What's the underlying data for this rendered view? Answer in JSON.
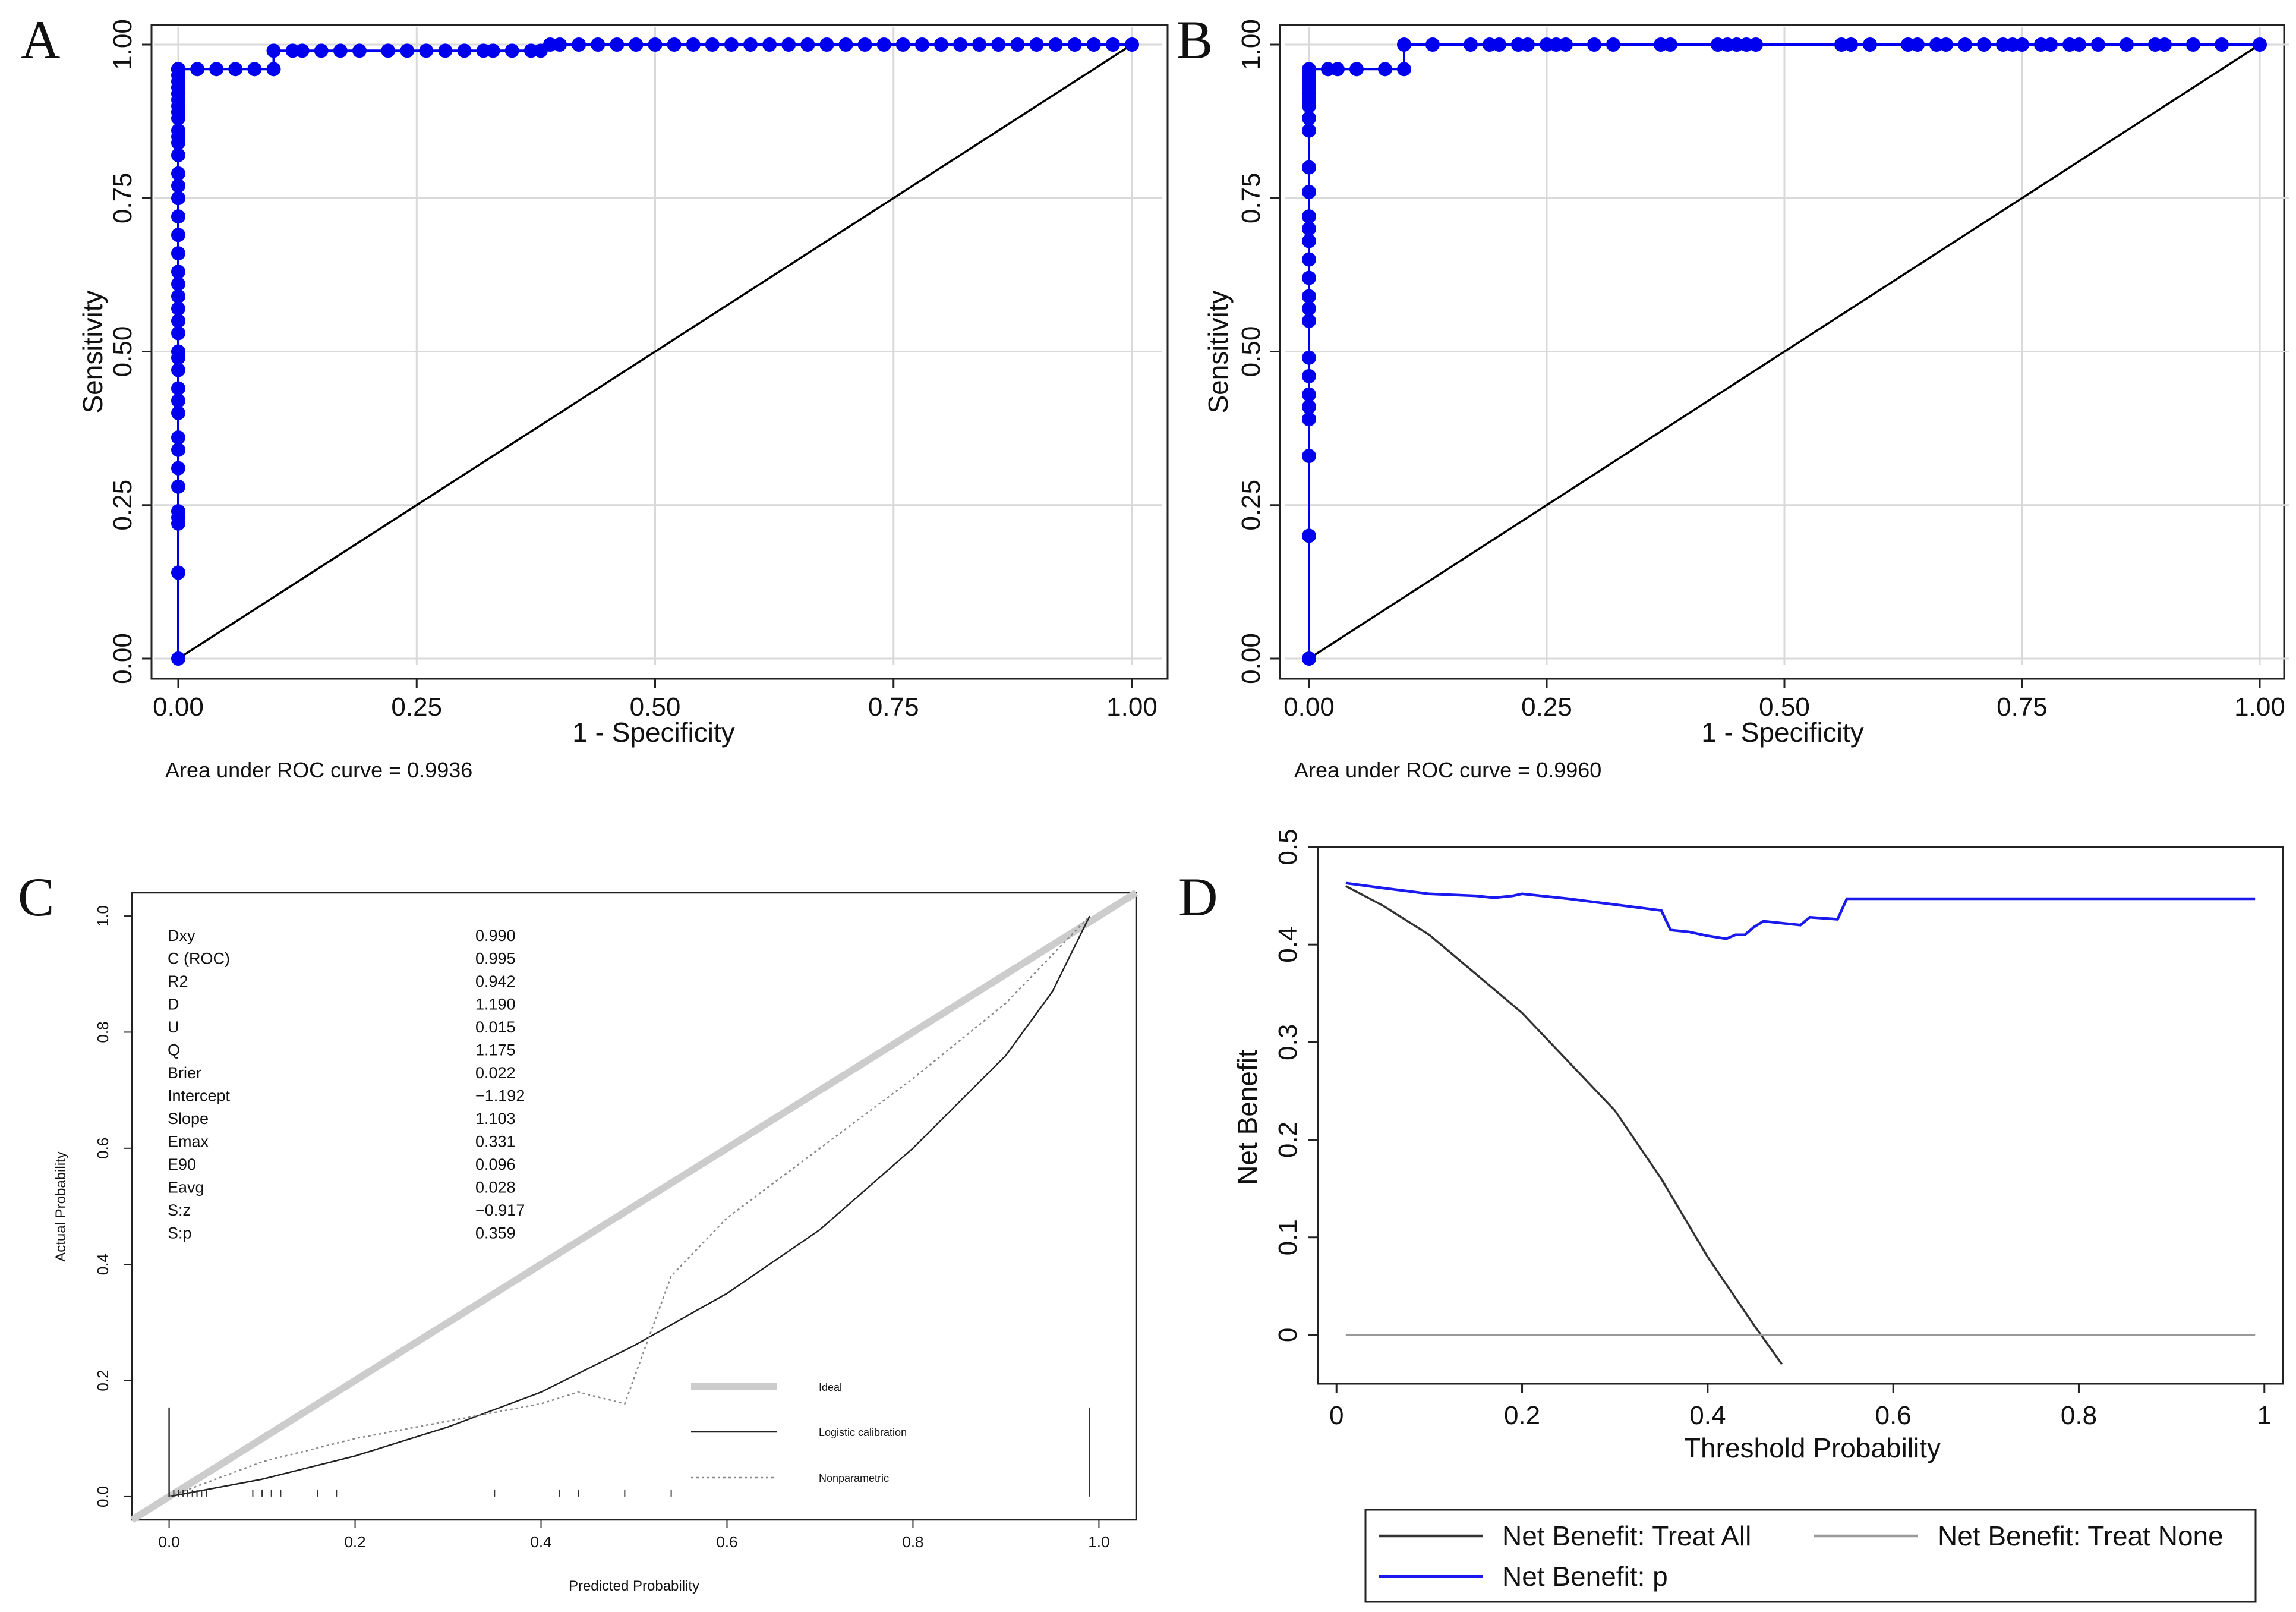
{
  "panels": [
    {
      "id": "A",
      "letter": "A",
      "chart_data": {
        "type": "line",
        "subtype": "roc",
        "xlabel": "1 - Specificity",
        "ylabel": "Sensitivity",
        "xlim": [
          0,
          1
        ],
        "ylim": [
          0,
          1
        ],
        "xticks": [
          "0.00",
          "0.25",
          "0.50",
          "0.75",
          "1.00"
        ],
        "yticks": [
          "0.00",
          "0.25",
          "0.50",
          "0.75",
          "1.00"
        ],
        "grid": true,
        "footnote": "Area under ROC curve = 0.9936",
        "reference_line": {
          "x": [
            0,
            1
          ],
          "y": [
            0,
            1
          ],
          "color": "#000000"
        },
        "series": [
          {
            "color": "#0000ee",
            "x": [
              0,
              0,
              0,
              0,
              0,
              0,
              0,
              0,
              0,
              0,
              0,
              0,
              0,
              0,
              0,
              0,
              0,
              0,
              0,
              0,
              0,
              0,
              0,
              0,
              0,
              0,
              0,
              0,
              0,
              0,
              0,
              0,
              0,
              0,
              0,
              0,
              0,
              0,
              0,
              0,
              0,
              0,
              0,
              0.02,
              0.04,
              0.06,
              0.08,
              0.1,
              0.1,
              0.12,
              0.13,
              0.15,
              0.17,
              0.19,
              0.22,
              0.24,
              0.26,
              0.28,
              0.3,
              0.32,
              0.33,
              0.35,
              0.37,
              0.38,
              0.39,
              0.4,
              0.42,
              0.44,
              0.46,
              0.48,
              0.5,
              0.52,
              0.54,
              0.56,
              0.58,
              0.6,
              0.62,
              0.64,
              0.66,
              0.68,
              0.7,
              0.72,
              0.74,
              0.76,
              0.78,
              0.8,
              0.82,
              0.84,
              0.86,
              0.88,
              0.9,
              0.92,
              0.94,
              0.96,
              0.98,
              1.0
            ],
            "y": [
              0,
              0.14,
              0.22,
              0.23,
              0.24,
              0.28,
              0.31,
              0.34,
              0.36,
              0.4,
              0.42,
              0.44,
              0.47,
              0.49,
              0.5,
              0.53,
              0.55,
              0.57,
              0.59,
              0.61,
              0.63,
              0.66,
              0.69,
              0.72,
              0.75,
              0.77,
              0.79,
              0.82,
              0.84,
              0.85,
              0.86,
              0.88,
              0.89,
              0.9,
              0.91,
              0.92,
              0.93,
              0.94,
              0.95,
              0.96,
              0.96,
              0.96,
              0.96,
              0.96,
              0.96,
              0.96,
              0.96,
              0.96,
              0.99,
              0.99,
              0.99,
              0.99,
              0.99,
              0.99,
              0.99,
              0.99,
              0.99,
              0.99,
              0.99,
              0.99,
              0.99,
              0.99,
              0.99,
              0.99,
              1.0,
              1.0,
              1.0,
              1.0,
              1.0,
              1.0,
              1.0,
              1.0,
              1.0,
              1.0,
              1.0,
              1.0,
              1.0,
              1.0,
              1.0,
              1.0,
              1.0,
              1.0,
              1.0,
              1.0,
              1.0,
              1.0,
              1.0,
              1.0,
              1.0,
              1.0,
              1.0,
              1.0,
              1.0,
              1.0,
              1.0,
              1.0
            ]
          }
        ]
      }
    },
    {
      "id": "B",
      "letter": "B",
      "chart_data": {
        "type": "line",
        "subtype": "roc",
        "xlabel": "1 - Specificity",
        "ylabel": "Sensitivity",
        "xlim": [
          0,
          1
        ],
        "ylim": [
          0,
          1
        ],
        "xticks": [
          "0.00",
          "0.25",
          "0.50",
          "0.75",
          "1.00"
        ],
        "yticks": [
          "0.00",
          "0.25",
          "0.50",
          "0.75",
          "1.00"
        ],
        "grid": true,
        "footnote": "Area under ROC curve = 0.9960",
        "reference_line": {
          "x": [
            0,
            1
          ],
          "y": [
            0,
            1
          ],
          "color": "#000000"
        },
        "series": [
          {
            "color": "#0000ee",
            "x": [
              0,
              0,
              0,
              0,
              0,
              0,
              0,
              0,
              0,
              0,
              0,
              0,
              0,
              0,
              0,
              0,
              0,
              0,
              0,
              0,
              0,
              0,
              0,
              0,
              0,
              0,
              0,
              0.02,
              0.03,
              0.05,
              0.08,
              0.1,
              0.1,
              0.13,
              0.17,
              0.19,
              0.2,
              0.22,
              0.23,
              0.25,
              0.26,
              0.27,
              0.3,
              0.32,
              0.37,
              0.38,
              0.43,
              0.44,
              0.45,
              0.46,
              0.47,
              0.56,
              0.57,
              0.59,
              0.63,
              0.64,
              0.66,
              0.67,
              0.69,
              0.71,
              0.73,
              0.74,
              0.75,
              0.77,
              0.78,
              0.8,
              0.81,
              0.83,
              0.86,
              0.89,
              0.9,
              0.93,
              0.96,
              1.0
            ],
            "y": [
              0,
              0.2,
              0.33,
              0.39,
              0.41,
              0.43,
              0.46,
              0.49,
              0.55,
              0.57,
              0.59,
              0.62,
              0.65,
              0.68,
              0.7,
              0.72,
              0.76,
              0.8,
              0.86,
              0.88,
              0.9,
              0.91,
              0.92,
              0.93,
              0.94,
              0.95,
              0.96,
              0.96,
              0.96,
              0.96,
              0.96,
              0.96,
              1.0,
              1.0,
              1.0,
              1.0,
              1.0,
              1.0,
              1.0,
              1.0,
              1.0,
              1.0,
              1.0,
              1.0,
              1.0,
              1.0,
              1.0,
              1.0,
              1.0,
              1.0,
              1.0,
              1.0,
              1.0,
              1.0,
              1.0,
              1.0,
              1.0,
              1.0,
              1.0,
              1.0,
              1.0,
              1.0,
              1.0,
              1.0,
              1.0,
              1.0,
              1.0,
              1.0,
              1.0,
              1.0,
              1.0,
              1.0,
              1.0,
              1.0
            ]
          }
        ]
      }
    },
    {
      "id": "C",
      "letter": "C",
      "chart_data": {
        "type": "line",
        "subtype": "calibration",
        "xlabel": "Predicted Probability",
        "ylabel": "Actual Probability",
        "xlim": [
          -0.04,
          1.04
        ],
        "ylim": [
          -0.04,
          1.04
        ],
        "xticks": [
          "0.0",
          "0.2",
          "0.4",
          "0.6",
          "0.8",
          "1.0"
        ],
        "yticks": [
          "0.0",
          "0.2",
          "0.4",
          "0.6",
          "0.8",
          "1.0"
        ],
        "grid": false,
        "stats": [
          {
            "label": "Dxy",
            "value": "0.990"
          },
          {
            "label": "C (ROC)",
            "value": "0.995"
          },
          {
            "label": "R2",
            "value": "0.942"
          },
          {
            "label": "D",
            "value": "1.190"
          },
          {
            "label": "U",
            "value": "0.015"
          },
          {
            "label": "Q",
            "value": "1.175"
          },
          {
            "label": "Brier",
            "value": "0.022"
          },
          {
            "label": "Intercept",
            "value": "−1.192"
          },
          {
            "label": "Slope",
            "value": "1.103"
          },
          {
            "label": "Emax",
            "value": "0.331"
          },
          {
            "label": "E90",
            "value": "0.096"
          },
          {
            "label": "Eavg",
            "value": "0.028"
          },
          {
            "label": "S:z",
            "value": "−0.917"
          },
          {
            "label": "S:p",
            "value": "0.359"
          }
        ],
        "legend": {
          "placement": "bottom-right",
          "entries": [
            {
              "name": "Ideal",
              "style": "thick-gray"
            },
            {
              "name": "Logistic calibration",
              "style": "solid-black"
            },
            {
              "name": "Nonparametric",
              "style": "dotted-gray"
            }
          ]
        },
        "series": [
          {
            "name": "Ideal",
            "color": "#cccccc",
            "x": [
              -0.04,
              1.04
            ],
            "y": [
              -0.04,
              1.04
            ]
          },
          {
            "name": "Logistic calibration",
            "color": "#222222",
            "x": [
              0,
              0.1,
              0.2,
              0.3,
              0.4,
              0.5,
              0.6,
              0.7,
              0.8,
              0.9,
              0.95,
              0.99
            ],
            "y": [
              0,
              0.03,
              0.07,
              0.12,
              0.18,
              0.26,
              0.35,
              0.46,
              0.6,
              0.76,
              0.87,
              1.0
            ]
          },
          {
            "name": "Nonparametric",
            "color": "#888888",
            "x": [
              0,
              0.1,
              0.2,
              0.3,
              0.4,
              0.44,
              0.49,
              0.54,
              0.6,
              0.7,
              0.8,
              0.9,
              0.99
            ],
            "y": [
              0,
              0.06,
              0.1,
              0.13,
              0.16,
              0.18,
              0.16,
              0.38,
              0.48,
              0.6,
              0.72,
              0.85,
              1.0
            ]
          }
        ],
        "rug_x": [
          0,
          0.005,
          0.01,
          0.015,
          0.02,
          0.025,
          0.03,
          0.035,
          0.04,
          0.09,
          0.1,
          0.11,
          0.12,
          0.16,
          0.18,
          0.35,
          0.42,
          0.44,
          0.49,
          0.54
        ],
        "rug_tall_x": [
          0.0,
          0.99
        ]
      }
    },
    {
      "id": "D",
      "letter": "D",
      "chart_data": {
        "type": "line",
        "subtype": "decision-curve",
        "xlabel": "Threshold Probability",
        "ylabel": "Net Benefit",
        "xlim": [
          -0.02,
          1.02
        ],
        "ylim": [
          -0.05,
          0.5
        ],
        "xticks": [
          "0",
          "0.2",
          "0.4",
          "0.6",
          "0.8",
          "1"
        ],
        "yticks": [
          "0",
          "0.1",
          "0.2",
          "0.3",
          "0.4",
          "0.5"
        ],
        "grid": false,
        "legend": {
          "placement": "bottom",
          "entries": [
            {
              "name": "Net Benefit: Treat All",
              "color": "#333333"
            },
            {
              "name": "Net Benefit: Treat None",
              "color": "#999999"
            },
            {
              "name": "Net Benefit: p",
              "color": "#1a1aee"
            }
          ]
        },
        "series": [
          {
            "name": "Net Benefit: Treat All",
            "color": "#333333",
            "x": [
              0.01,
              0.05,
              0.1,
              0.15,
              0.2,
              0.25,
              0.3,
              0.35,
              0.4,
              0.45,
              0.48
            ],
            "y": [
              0.46,
              0.44,
              0.41,
              0.37,
              0.33,
              0.28,
              0.23,
              0.16,
              0.08,
              0.01,
              -0.03
            ]
          },
          {
            "name": "Net Benefit: Treat None",
            "color": "#999999",
            "x": [
              0.01,
              0.99
            ],
            "y": [
              0,
              0
            ]
          },
          {
            "name": "Net Benefit: p",
            "color": "#1a1aee",
            "x": [
              0.01,
              0.05,
              0.1,
              0.15,
              0.17,
              0.19,
              0.2,
              0.25,
              0.3,
              0.35,
              0.36,
              0.38,
              0.4,
              0.42,
              0.43,
              0.44,
              0.45,
              0.46,
              0.5,
              0.51,
              0.54,
              0.55,
              0.56,
              0.99
            ],
            "y": [
              0.463,
              0.458,
              0.452,
              0.45,
              0.448,
              0.45,
              0.452,
              0.447,
              0.441,
              0.435,
              0.415,
              0.413,
              0.409,
              0.406,
              0.41,
              0.41,
              0.418,
              0.424,
              0.42,
              0.428,
              0.426,
              0.447,
              0.447,
              0.447
            ]
          }
        ]
      }
    }
  ]
}
